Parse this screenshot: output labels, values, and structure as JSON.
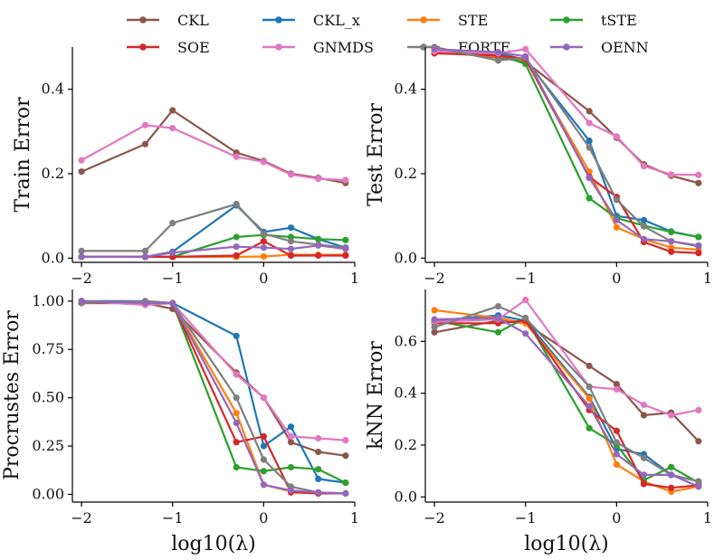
{
  "colors": {
    "CKL": "#8c564b",
    "CKL_x": "#1f77b4",
    "STE": "#ff7f0e",
    "tSTE": "#2ca02c",
    "SOE": "#d62728",
    "GNMDS": "#e377c2",
    "FORTE": "#7f7f7f",
    "OENN": "#9467bd"
  },
  "legend": [
    {
      "key": "CKL",
      "label": "CKL"
    },
    {
      "key": "CKL_x",
      "label": "CKL_x"
    },
    {
      "key": "STE",
      "label": "STE"
    },
    {
      "key": "tSTE",
      "label": "tSTE"
    },
    {
      "key": "SOE",
      "label": "SOE"
    },
    {
      "key": "GNMDS",
      "label": "GNMDS"
    },
    {
      "key": "FORTE",
      "label": "FORTE"
    },
    {
      "key": "OENN",
      "label": "OENN"
    }
  ],
  "x_axis_label": "log10(λ)",
  "chart_data": [
    {
      "type": "line",
      "ylabel": "Train Error",
      "xlim": [
        -2.1,
        1.0
      ],
      "ylim": [
        -0.01,
        0.5
      ],
      "xticks": [
        -2,
        -1,
        0,
        1
      ],
      "xtick_labels": [
        "−2",
        "−1",
        "0",
        "1"
      ],
      "yticks": [
        0.0,
        0.2,
        0.4
      ],
      "ytick_labels": [
        "0.0",
        "0.2",
        "0.4"
      ],
      "x": [
        -2,
        -1.3,
        -1,
        -0.3,
        0,
        0.3,
        0.6,
        0.9
      ],
      "series": [
        {
          "name": "CKL",
          "values": [
            0.205,
            0.27,
            0.35,
            0.25,
            0.23,
            0.2,
            0.19,
            0.178
          ]
        },
        {
          "name": "CKL_x",
          "values": [
            0.003,
            0.003,
            0.015,
            0.125,
            0.062,
            0.072,
            0.045,
            0.025
          ]
        },
        {
          "name": "STE",
          "values": [
            0.003,
            0.003,
            0.003,
            0.003,
            0.004,
            0.008,
            0.008,
            0.008
          ]
        },
        {
          "name": "tSTE",
          "values": [
            0.003,
            0.003,
            0.003,
            0.05,
            0.055,
            0.05,
            0.045,
            0.043
          ]
        },
        {
          "name": "SOE",
          "values": [
            0.003,
            0.003,
            0.003,
            0.006,
            0.04,
            0.006,
            0.006,
            0.006
          ]
        },
        {
          "name": "GNMDS",
          "values": [
            0.232,
            0.315,
            0.308,
            0.24,
            0.228,
            0.198,
            0.188,
            0.185
          ]
        },
        {
          "name": "FORTE",
          "values": [
            0.017,
            0.017,
            0.083,
            0.128,
            0.058,
            0.04,
            0.032,
            0.025
          ]
        },
        {
          "name": "OENN",
          "values": [
            0.003,
            0.003,
            0.013,
            0.027,
            0.025,
            0.022,
            0.03,
            0.022
          ]
        }
      ]
    },
    {
      "type": "line",
      "ylabel": "Test Error",
      "xlim": [
        -2.1,
        1.0
      ],
      "ylim": [
        -0.01,
        0.5
      ],
      "xticks": [
        -2,
        -1,
        0,
        1
      ],
      "xtick_labels": [
        "−2",
        "−1",
        "0",
        "1"
      ],
      "yticks": [
        0.0,
        0.2,
        0.4
      ],
      "ytick_labels": [
        "0.0",
        "0.2",
        "0.4"
      ],
      "x": [
        -2,
        -1.3,
        -1,
        -0.3,
        0,
        0.3,
        0.6,
        0.9
      ],
      "series": [
        {
          "name": "CKL",
          "values": [
            0.49,
            0.475,
            0.465,
            0.348,
            0.285,
            0.222,
            0.195,
            0.178
          ]
        },
        {
          "name": "CKL_x",
          "values": [
            0.495,
            0.485,
            0.47,
            0.278,
            0.1,
            0.09,
            0.063,
            0.05
          ]
        },
        {
          "name": "STE",
          "values": [
            0.488,
            0.478,
            0.47,
            0.205,
            0.073,
            0.045,
            0.025,
            0.02
          ]
        },
        {
          "name": "tSTE",
          "values": [
            0.49,
            0.482,
            0.46,
            0.142,
            0.095,
            0.077,
            0.062,
            0.05
          ]
        },
        {
          "name": "SOE",
          "values": [
            0.485,
            0.48,
            0.472,
            0.192,
            0.145,
            0.038,
            0.015,
            0.012
          ]
        },
        {
          "name": "GNMDS",
          "values": [
            0.49,
            0.485,
            0.495,
            0.32,
            0.288,
            0.218,
            0.198,
            0.197
          ]
        },
        {
          "name": "FORTE",
          "values": [
            0.5,
            0.468,
            0.475,
            0.262,
            0.138,
            0.075,
            0.04,
            0.028
          ]
        },
        {
          "name": "OENN",
          "values": [
            0.495,
            0.488,
            0.478,
            0.19,
            0.09,
            0.045,
            0.04,
            0.03
          ]
        }
      ]
    },
    {
      "type": "line",
      "ylabel": "Procrustes Error",
      "xlim": [
        -2.1,
        1.0
      ],
      "ylim": [
        -0.04,
        1.06
      ],
      "xticks": [
        -2,
        -1,
        0,
        1
      ],
      "xtick_labels": [
        "−2",
        "−1",
        "0",
        "1"
      ],
      "yticks": [
        0.0,
        0.25,
        0.5,
        0.75,
        1.0
      ],
      "ytick_labels": [
        "0.00",
        "0.25",
        "0.50",
        "0.75",
        "1.00"
      ],
      "x": [
        -2,
        -1.3,
        -1,
        -0.3,
        0,
        0.3,
        0.6,
        0.9
      ],
      "series": [
        {
          "name": "CKL",
          "values": [
            0.99,
            0.99,
            0.96,
            0.63,
            0.5,
            0.27,
            0.22,
            0.2
          ]
        },
        {
          "name": "CKL_x",
          "values": [
            1.0,
            1.0,
            0.99,
            0.82,
            0.25,
            0.35,
            0.08,
            0.06
          ]
        },
        {
          "name": "STE",
          "values": [
            1.0,
            0.99,
            0.99,
            0.42,
            0.05,
            0.015,
            0.005,
            0.005
          ]
        },
        {
          "name": "tSTE",
          "values": [
            1.0,
            0.99,
            0.99,
            0.14,
            0.12,
            0.14,
            0.13,
            0.06
          ]
        },
        {
          "name": "SOE",
          "values": [
            0.99,
            0.99,
            0.99,
            0.27,
            0.3,
            0.01,
            0.005,
            0.005
          ]
        },
        {
          "name": "GNMDS",
          "values": [
            1.0,
            0.98,
            0.99,
            0.62,
            0.5,
            0.3,
            0.29,
            0.28
          ]
        },
        {
          "name": "FORTE",
          "values": [
            0.99,
            1.0,
            0.99,
            0.5,
            0.18,
            0.04,
            0.01,
            0.005
          ]
        },
        {
          "name": "OENN",
          "values": [
            1.0,
            0.99,
            0.99,
            0.37,
            0.05,
            0.02,
            0.01,
            0.005
          ]
        }
      ]
    },
    {
      "type": "line",
      "ylabel": "kNN Error",
      "xlim": [
        -2.1,
        1.0
      ],
      "ylim": [
        -0.02,
        0.8
      ],
      "xticks": [
        -2,
        -1,
        0,
        1
      ],
      "xtick_labels": [
        "−2",
        "−1",
        "0",
        "1"
      ],
      "yticks": [
        0.0,
        0.2,
        0.4,
        0.6
      ],
      "ytick_labels": [
        "0.0",
        "0.2",
        "0.4",
        "0.6"
      ],
      "x": [
        -2,
        -1.3,
        -1,
        -0.3,
        0,
        0.3,
        0.6,
        0.9
      ],
      "series": [
        {
          "name": "CKL",
          "values": [
            0.635,
            0.68,
            0.67,
            0.505,
            0.435,
            0.315,
            0.325,
            0.215
          ]
        },
        {
          "name": "CKL_x",
          "values": [
            0.68,
            0.7,
            0.68,
            0.385,
            0.185,
            0.165,
            0.085,
            0.06
          ]
        },
        {
          "name": "STE",
          "values": [
            0.72,
            0.69,
            0.67,
            0.38,
            0.125,
            0.06,
            0.02,
            0.04
          ]
        },
        {
          "name": "tSTE",
          "values": [
            0.68,
            0.635,
            0.69,
            0.265,
            0.2,
            0.065,
            0.115,
            0.055
          ]
        },
        {
          "name": "SOE",
          "values": [
            0.67,
            0.67,
            0.68,
            0.335,
            0.255,
            0.05,
            0.035,
            0.045
          ]
        },
        {
          "name": "GNMDS",
          "values": [
            0.675,
            0.685,
            0.76,
            0.425,
            0.415,
            0.355,
            0.315,
            0.335
          ]
        },
        {
          "name": "FORTE",
          "values": [
            0.655,
            0.735,
            0.69,
            0.425,
            0.21,
            0.15,
            0.085,
            0.06
          ]
        },
        {
          "name": "OENN",
          "values": [
            0.685,
            0.69,
            0.63,
            0.35,
            0.165,
            0.085,
            0.085,
            0.04
          ]
        }
      ]
    }
  ]
}
